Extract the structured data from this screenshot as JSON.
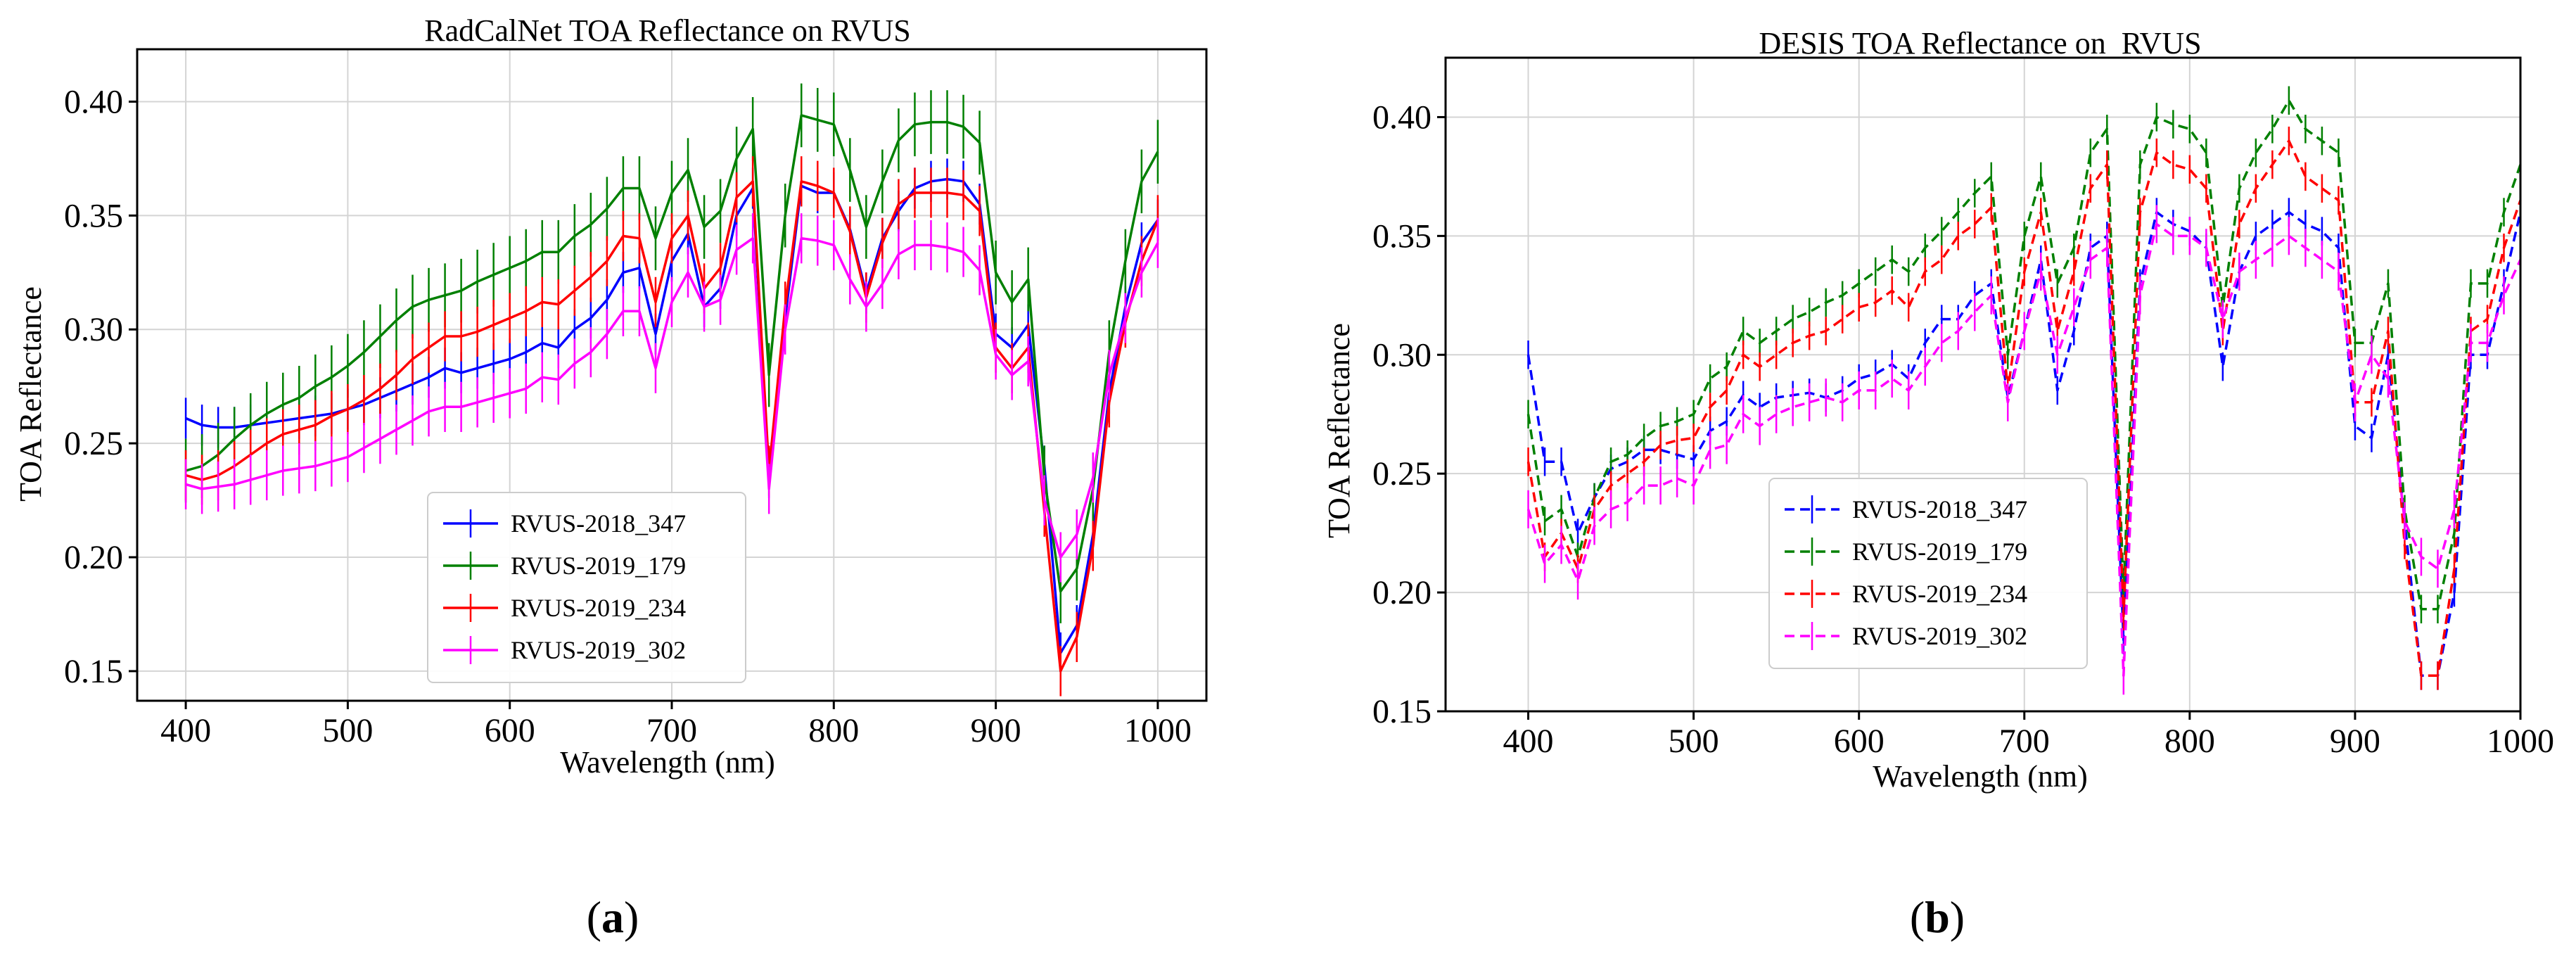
{
  "chart_data": [
    {
      "id": "a",
      "type": "line",
      "title": "RadCalNet TOA Reflectance on RVUS",
      "xlabel": "Wavelength (nm)",
      "ylabel": "TOA Reflectance",
      "xlim": [
        370,
        1030
      ],
      "ylim": [
        0.137,
        0.423
      ],
      "xticks": [
        400,
        500,
        600,
        700,
        800,
        900,
        1000
      ],
      "yticks": [
        0.15,
        0.2,
        0.25,
        0.3,
        0.35,
        0.4
      ],
      "ytick_labels": [
        "0.15",
        "0.20",
        "0.25",
        "0.30",
        "0.35",
        "0.40"
      ],
      "grid": true,
      "linestyle": "solid",
      "legend_position": "lower-center",
      "x": [
        400,
        410,
        420,
        430,
        440,
        450,
        460,
        470,
        480,
        490,
        500,
        510,
        520,
        530,
        540,
        550,
        560,
        570,
        580,
        590,
        600,
        610,
        620,
        630,
        640,
        650,
        660,
        670,
        680,
        690,
        700,
        710,
        720,
        730,
        740,
        750,
        760,
        770,
        780,
        790,
        800,
        810,
        820,
        830,
        840,
        850,
        860,
        870,
        880,
        890,
        900,
        910,
        920,
        930,
        940,
        950,
        960,
        970,
        980,
        990,
        1000
      ],
      "series": [
        {
          "name": "RVUS-2018_347",
          "color": "#0000ff",
          "err": 0.009,
          "values": [
            0.261,
            0.258,
            0.257,
            0.257,
            0.258,
            0.259,
            0.26,
            0.261,
            0.262,
            0.263,
            0.265,
            0.267,
            0.27,
            0.273,
            0.276,
            0.279,
            0.283,
            0.281,
            0.283,
            0.285,
            0.287,
            0.29,
            0.294,
            0.292,
            0.3,
            0.305,
            0.313,
            0.325,
            0.327,
            0.298,
            0.33,
            0.342,
            0.31,
            0.318,
            0.35,
            0.362,
            0.235,
            0.305,
            0.363,
            0.36,
            0.36,
            0.344,
            0.316,
            0.34,
            0.352,
            0.362,
            0.365,
            0.366,
            0.365,
            0.355,
            0.298,
            0.292,
            0.302,
            0.24,
            0.158,
            0.17,
            0.21,
            0.272,
            0.31,
            0.338,
            0.348
          ]
        },
        {
          "name": "RVUS-2019_179",
          "color": "#008000",
          "err": 0.014,
          "values": [
            0.238,
            0.24,
            0.245,
            0.252,
            0.258,
            0.263,
            0.267,
            0.27,
            0.275,
            0.279,
            0.284,
            0.29,
            0.297,
            0.304,
            0.31,
            0.313,
            0.315,
            0.317,
            0.321,
            0.324,
            0.327,
            0.33,
            0.334,
            0.334,
            0.341,
            0.346,
            0.353,
            0.362,
            0.362,
            0.34,
            0.36,
            0.37,
            0.345,
            0.352,
            0.375,
            0.388,
            0.28,
            0.35,
            0.394,
            0.392,
            0.39,
            0.37,
            0.345,
            0.365,
            0.383,
            0.39,
            0.391,
            0.391,
            0.389,
            0.382,
            0.325,
            0.312,
            0.322,
            0.235,
            0.185,
            0.195,
            0.23,
            0.29,
            0.33,
            0.365,
            0.378
          ]
        },
        {
          "name": "RVUS-2019_234",
          "color": "#ff0000",
          "err": 0.011,
          "values": [
            0.236,
            0.234,
            0.236,
            0.24,
            0.245,
            0.25,
            0.254,
            0.256,
            0.258,
            0.262,
            0.265,
            0.269,
            0.274,
            0.28,
            0.287,
            0.292,
            0.297,
            0.297,
            0.299,
            0.302,
            0.305,
            0.308,
            0.312,
            0.311,
            0.317,
            0.323,
            0.33,
            0.341,
            0.34,
            0.312,
            0.34,
            0.35,
            0.318,
            0.327,
            0.358,
            0.365,
            0.238,
            0.31,
            0.365,
            0.363,
            0.36,
            0.343,
            0.314,
            0.338,
            0.355,
            0.36,
            0.36,
            0.36,
            0.359,
            0.352,
            0.292,
            0.283,
            0.292,
            0.22,
            0.15,
            0.165,
            0.205,
            0.268,
            0.303,
            0.33,
            0.348
          ]
        },
        {
          "name": "RVUS-2019_302",
          "color": "#ff00ff",
          "err": 0.011,
          "values": [
            0.232,
            0.23,
            0.231,
            0.232,
            0.234,
            0.236,
            0.238,
            0.239,
            0.24,
            0.242,
            0.244,
            0.248,
            0.252,
            0.256,
            0.26,
            0.264,
            0.266,
            0.266,
            0.268,
            0.27,
            0.272,
            0.274,
            0.279,
            0.278,
            0.285,
            0.29,
            0.298,
            0.308,
            0.308,
            0.283,
            0.312,
            0.325,
            0.31,
            0.313,
            0.335,
            0.34,
            0.23,
            0.3,
            0.34,
            0.339,
            0.337,
            0.322,
            0.31,
            0.32,
            0.333,
            0.337,
            0.337,
            0.336,
            0.334,
            0.326,
            0.289,
            0.28,
            0.286,
            0.225,
            0.2,
            0.21,
            0.235,
            0.28,
            0.305,
            0.325,
            0.338
          ]
        }
      ]
    },
    {
      "id": "b",
      "type": "line",
      "title": "DESIS TOA Reflectance on  RVUS",
      "xlabel": "Wavelength (nm)",
      "ylabel": "TOA Reflectance",
      "xlim": [
        350,
        1000
      ],
      "ylim": [
        0.15,
        0.425
      ],
      "xticks": [
        400,
        500,
        600,
        700,
        800,
        900,
        1000
      ],
      "yticks": [
        0.15,
        0.2,
        0.25,
        0.3,
        0.35,
        0.4
      ],
      "ytick_labels": [
        "0.15",
        "0.20",
        "0.25",
        "0.30",
        "0.35",
        "0.40"
      ],
      "grid": true,
      "linestyle": "dashed",
      "legend_position": "lower-left",
      "x": [
        400,
        410,
        420,
        430,
        440,
        450,
        460,
        470,
        480,
        490,
        500,
        510,
        520,
        530,
        540,
        550,
        560,
        570,
        580,
        590,
        600,
        610,
        620,
        630,
        640,
        650,
        660,
        670,
        680,
        690,
        700,
        710,
        720,
        730,
        740,
        750,
        760,
        770,
        780,
        790,
        800,
        810,
        820,
        830,
        840,
        850,
        860,
        870,
        880,
        890,
        900,
        910,
        920,
        930,
        940,
        950,
        960,
        970,
        980,
        990,
        1000
      ],
      "series": [
        {
          "name": "RVUS-2018_347",
          "color": "#0000ff",
          "err": 0.006,
          "values": [
            0.3,
            0.255,
            0.255,
            0.225,
            0.24,
            0.252,
            0.255,
            0.26,
            0.26,
            0.258,
            0.256,
            0.268,
            0.272,
            0.283,
            0.278,
            0.282,
            0.283,
            0.284,
            0.282,
            0.285,
            0.29,
            0.292,
            0.296,
            0.29,
            0.305,
            0.315,
            0.315,
            0.325,
            0.33,
            0.282,
            0.31,
            0.34,
            0.285,
            0.31,
            0.345,
            0.35,
            0.18,
            0.33,
            0.36,
            0.355,
            0.352,
            0.345,
            0.295,
            0.335,
            0.35,
            0.355,
            0.36,
            0.355,
            0.352,
            0.345,
            0.27,
            0.265,
            0.3,
            0.23,
            0.165,
            0.165,
            0.2,
            0.3,
            0.3,
            0.33,
            0.36
          ]
        },
        {
          "name": "RVUS-2019_179",
          "color": "#008000",
          "err": 0.006,
          "values": [
            0.275,
            0.23,
            0.235,
            0.215,
            0.24,
            0.255,
            0.258,
            0.265,
            0.27,
            0.272,
            0.275,
            0.29,
            0.295,
            0.31,
            0.305,
            0.31,
            0.315,
            0.318,
            0.322,
            0.325,
            0.33,
            0.335,
            0.34,
            0.335,
            0.345,
            0.352,
            0.36,
            0.368,
            0.375,
            0.3,
            0.35,
            0.375,
            0.33,
            0.345,
            0.385,
            0.395,
            0.2,
            0.38,
            0.4,
            0.397,
            0.395,
            0.385,
            0.32,
            0.37,
            0.385,
            0.395,
            0.407,
            0.395,
            0.39,
            0.385,
            0.305,
            0.305,
            0.33,
            0.235,
            0.193,
            0.193,
            0.225,
            0.33,
            0.33,
            0.36,
            0.38
          ]
        },
        {
          "name": "RVUS-2019_234",
          "color": "#ff0000",
          "err": 0.006,
          "values": [
            0.255,
            0.215,
            0.225,
            0.21,
            0.235,
            0.245,
            0.25,
            0.255,
            0.262,
            0.264,
            0.265,
            0.278,
            0.285,
            0.3,
            0.295,
            0.3,
            0.305,
            0.308,
            0.31,
            0.315,
            0.32,
            0.322,
            0.327,
            0.32,
            0.335,
            0.34,
            0.35,
            0.355,
            0.362,
            0.285,
            0.335,
            0.36,
            0.31,
            0.335,
            0.37,
            0.38,
            0.19,
            0.36,
            0.385,
            0.38,
            0.378,
            0.37,
            0.31,
            0.355,
            0.37,
            0.38,
            0.39,
            0.375,
            0.37,
            0.365,
            0.28,
            0.28,
            0.31,
            0.22,
            0.165,
            0.165,
            0.21,
            0.31,
            0.315,
            0.345,
            0.365
          ]
        },
        {
          "name": "RVUS-2019_302",
          "color": "#ff00ff",
          "err": 0.008,
          "values": [
            0.235,
            0.212,
            0.22,
            0.205,
            0.228,
            0.235,
            0.238,
            0.245,
            0.245,
            0.248,
            0.245,
            0.26,
            0.262,
            0.275,
            0.27,
            0.275,
            0.278,
            0.28,
            0.282,
            0.28,
            0.285,
            0.285,
            0.29,
            0.285,
            0.295,
            0.305,
            0.31,
            0.318,
            0.325,
            0.28,
            0.31,
            0.335,
            0.3,
            0.32,
            0.34,
            0.345,
            0.165,
            0.325,
            0.355,
            0.35,
            0.35,
            0.345,
            0.315,
            0.335,
            0.34,
            0.345,
            0.35,
            0.345,
            0.34,
            0.335,
            0.28,
            0.3,
            0.29,
            0.23,
            0.215,
            0.21,
            0.235,
            0.305,
            0.305,
            0.325,
            0.34
          ]
        }
      ]
    }
  ],
  "captions": {
    "a": {
      "open": "(",
      "letter": "a",
      "close": ")"
    },
    "b": {
      "open": "(",
      "letter": "b",
      "close": ")"
    }
  }
}
